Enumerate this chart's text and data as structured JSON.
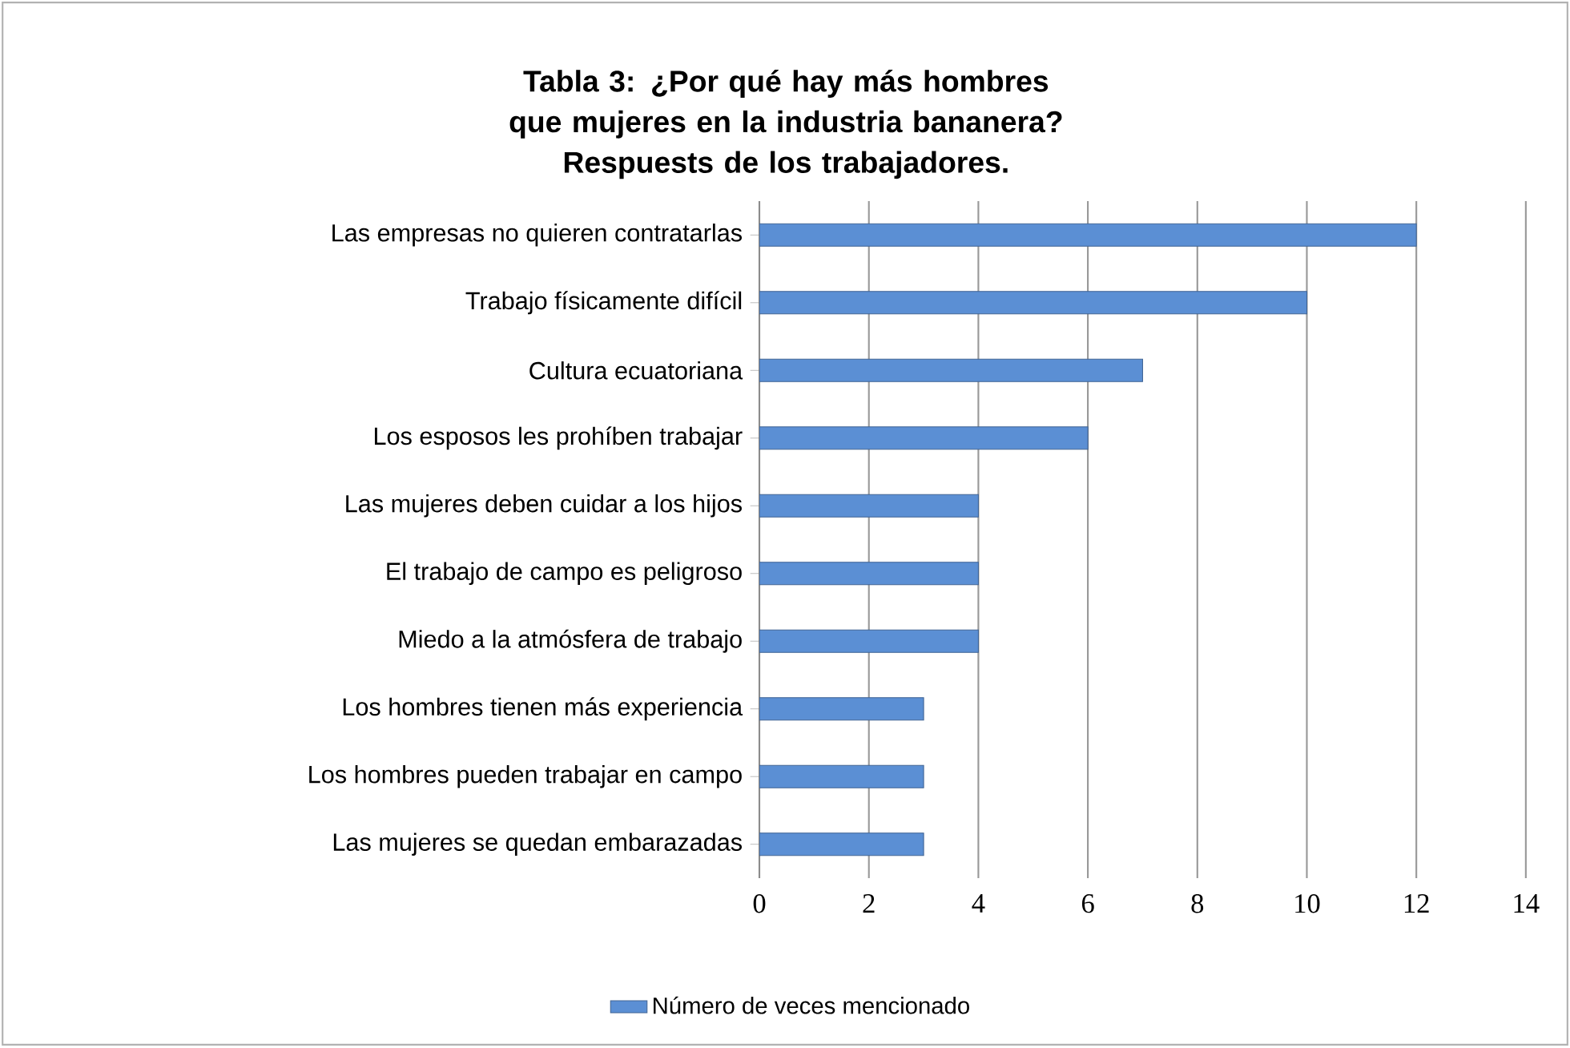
{
  "chart_data": {
    "type": "bar",
    "orientation": "horizontal",
    "title": "Tabla 3: ¿Por qué hay más hombres que mujeres en la industria bananera? Respuests de los trabajadores.",
    "categories": [
      "Las empresas no quieren contratarlas",
      "Trabajo físicamente difícil",
      "Cultura ecuatoriana",
      "Los esposos les prohíben trabajar",
      "Las mujeres deben cuidar a los hijos",
      "El trabajo de campo es peligroso",
      "Miedo a la atmósfera de trabajo",
      "Los hombres tienen más experiencia",
      "Los hombres pueden trabajar en campo",
      "Las mujeres se quedan embarazadas"
    ],
    "series": [
      {
        "name": "Número de veces mencionado",
        "color": "#5b8fd4",
        "values": [
          12,
          10,
          7,
          6,
          4,
          4,
          4,
          3,
          3,
          3
        ]
      }
    ],
    "xlim": [
      0,
      14
    ],
    "xticks": [
      0,
      2,
      4,
      6,
      8,
      10,
      12,
      14
    ],
    "grid": "x",
    "legend": "bottom"
  }
}
